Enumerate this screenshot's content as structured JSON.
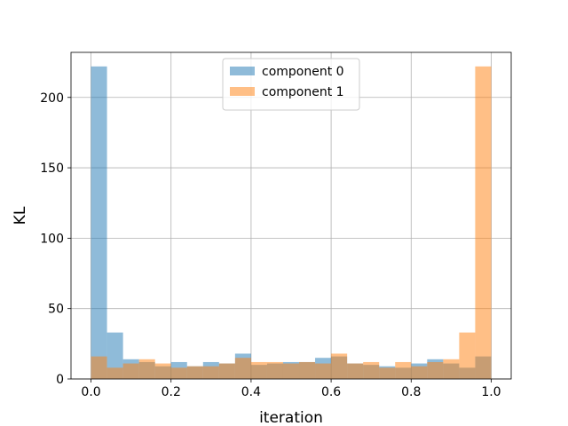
{
  "chart_data": {
    "type": "histogram",
    "title": "",
    "xlabel": "iteration",
    "ylabel": "KL",
    "xlim": [
      -0.05,
      1.05
    ],
    "ylim": [
      0,
      232
    ],
    "xticks": [
      "0.0",
      "0.2",
      "0.4",
      "0.6",
      "0.8",
      "1.0"
    ],
    "yticks": [
      "0",
      "50",
      "100",
      "150",
      "200"
    ],
    "grid": true,
    "legend_position": "top-center",
    "bin_edges": [
      0.0,
      0.04,
      0.08,
      0.12,
      0.16,
      0.2,
      0.24,
      0.28,
      0.32,
      0.36,
      0.4,
      0.44,
      0.48,
      0.52,
      0.56,
      0.6,
      0.64,
      0.68,
      0.72,
      0.76,
      0.8,
      0.84,
      0.88,
      0.92,
      0.96,
      1.0
    ],
    "series": [
      {
        "name": "component 0",
        "color": "#1f77b4",
        "alpha": 0.5,
        "values": [
          222,
          33,
          14,
          12,
          9,
          12,
          9,
          12,
          11,
          18,
          10,
          11,
          12,
          12,
          15,
          16,
          11,
          10,
          9,
          8,
          11,
          14,
          11,
          8,
          16
        ]
      },
      {
        "name": "component 1",
        "color": "#ff7f0e",
        "alpha": 0.5,
        "values": [
          16,
          8,
          11,
          14,
          11,
          8,
          9,
          9,
          11,
          15,
          12,
          12,
          11,
          12,
          11,
          18,
          11,
          12,
          8,
          12,
          9,
          12,
          14,
          33,
          222
        ]
      }
    ]
  }
}
